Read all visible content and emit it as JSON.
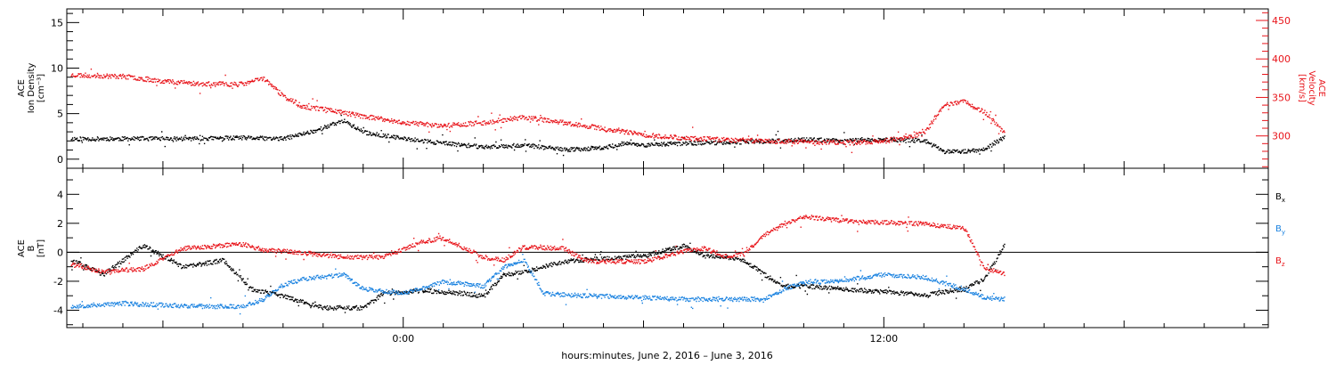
{
  "xlabel": "hours:minutes, June  2, 2016 – June  3, 2016",
  "colors": {
    "black": "#000000",
    "red": "#e8141a",
    "blue": "#1a82e0"
  },
  "chart_data": [
    {
      "type": "scatter",
      "panel": "top",
      "ylabel_left": [
        "ACE",
        "Ion Density",
        "[cm⁻³]"
      ],
      "ylabel_right": [
        "ACE",
        "Velocity",
        "[km/s]"
      ],
      "x_ticks": [
        {
          "hour": 0,
          "label": "0:00"
        },
        {
          "hour": 12,
          "label": "12:00"
        }
      ],
      "xlim_hours": [
        -8.4,
        21.6
      ],
      "ylim_left": [
        -1,
        16.5
      ],
      "ylim_right": [
        258,
        465
      ],
      "left_ticks": [
        0,
        5,
        10,
        15
      ],
      "right_ticks": [
        300,
        350,
        400,
        450
      ],
      "series": [
        {
          "name": "",
          "axis": "left",
          "color": "black",
          "x_hours": [
            -8.3,
            -7,
            -5.5,
            -4,
            -3,
            -2.2,
            -1.5,
            -1,
            0,
            1,
            2,
            3,
            4,
            5,
            5.5,
            6,
            7,
            8,
            9,
            10,
            11,
            12,
            13,
            13.5,
            14,
            14.5,
            15
          ],
          "values": [
            2.3,
            2.3,
            2.3,
            2.4,
            2.3,
            3.2,
            4.3,
            3,
            2.3,
            1.8,
            1.4,
            1.6,
            1.1,
            1.3,
            1.8,
            1.6,
            1.8,
            1.9,
            2,
            2.2,
            2.1,
            2.2,
            2.1,
            0.9,
            0.9,
            1.1,
            2.5
          ]
        },
        {
          "name": "",
          "axis": "right",
          "color": "red",
          "x_hours": [
            -8.3,
            -7,
            -6,
            -5,
            -4,
            -3.5,
            -3,
            -2.5,
            -2,
            -1,
            0,
            1,
            2,
            3,
            4,
            5,
            6,
            7,
            8,
            9,
            10,
            11,
            12,
            13,
            13.5,
            14,
            14.5,
            15
          ],
          "values": [
            380,
            378,
            372,
            368,
            368,
            376,
            352,
            338,
            336,
            326,
            318,
            314,
            318,
            325,
            318,
            310,
            302,
            298,
            296,
            294,
            293,
            292,
            294,
            304,
            342,
            345,
            332,
            305
          ]
        }
      ]
    },
    {
      "type": "scatter",
      "panel": "bottom",
      "ylabel_left": [
        "ACE",
        "B",
        "[nT]"
      ],
      "ylim": [
        -5.2,
        5.8
      ],
      "y_ticks": [
        -4,
        -2,
        0,
        2,
        4
      ],
      "legend": [
        {
          "label": "Bx",
          "color": "black"
        },
        {
          "label": "By",
          "color": "blue"
        },
        {
          "label": "Bz",
          "color": "red"
        }
      ],
      "series": [
        {
          "name": "Bx",
          "color": "black",
          "x_hours": [
            -8.3,
            -7.5,
            -6.5,
            -5.5,
            -4.5,
            -3.8,
            -3,
            -2,
            -1,
            -0.5,
            0.5,
            1.5,
            2,
            2.5,
            3,
            4,
            5,
            6,
            7,
            7.5,
            8,
            8.5,
            9,
            9.5,
            10,
            11,
            12,
            13,
            14,
            14.5,
            15
          ],
          "values": [
            -0.5,
            -1.5,
            0.5,
            -1,
            -0.5,
            -2.5,
            -3,
            -3.8,
            -3.8,
            -2.8,
            -2.6,
            -2.8,
            -3,
            -1.5,
            -1.3,
            -0.6,
            -0.4,
            -0.2,
            0.5,
            -0.2,
            -0.3,
            -0.5,
            -1.5,
            -2.3,
            -2.3,
            -2.5,
            -2.7,
            -2.9,
            -2.5,
            -1.8,
            0.5
          ]
        },
        {
          "name": "By",
          "color": "blue",
          "x_hours": [
            -8.3,
            -7,
            -6,
            -5,
            -4,
            -3.5,
            -3,
            -2.5,
            -1.5,
            -1,
            0,
            1,
            2,
            2.5,
            3,
            3.5,
            4,
            5,
            6,
            7,
            8,
            9,
            9.5,
            10,
            11,
            12,
            13,
            14,
            14.5,
            15
          ],
          "values": [
            -3.7,
            -3.5,
            -3.6,
            -3.7,
            -3.7,
            -3.2,
            -2.2,
            -1.8,
            -1.5,
            -2.5,
            -2.8,
            -2,
            -2.3,
            -1,
            -0.5,
            -2.8,
            -2.9,
            -3,
            -3.1,
            -3.2,
            -3.2,
            -3.2,
            -2.5,
            -2,
            -1.9,
            -1.5,
            -1.7,
            -2.5,
            -3.1,
            -3.2
          ]
        },
        {
          "name": "Bz",
          "color": "red",
          "x_hours": [
            -8.3,
            -7.5,
            -6.5,
            -5.5,
            -4,
            -3.5,
            -2.5,
            -1.5,
            -0.5,
            0.5,
            1,
            2,
            2.5,
            3,
            4,
            4.5,
            5,
            6,
            7,
            7.5,
            8,
            8.5,
            9,
            9.5,
            10,
            11,
            12,
            13,
            14,
            14.5,
            15
          ],
          "values": [
            -0.8,
            -1.3,
            -1.1,
            0.3,
            0.6,
            0.2,
            0,
            -0.3,
            -0.3,
            0.8,
            1,
            -0.3,
            -0.5,
            0.4,
            0.3,
            -0.5,
            -0.6,
            -0.6,
            0.1,
            0.3,
            -0.2,
            -0.1,
            1.2,
            2,
            2.5,
            2.2,
            2.1,
            2,
            1.7,
            -1,
            -1.5
          ]
        }
      ]
    }
  ]
}
